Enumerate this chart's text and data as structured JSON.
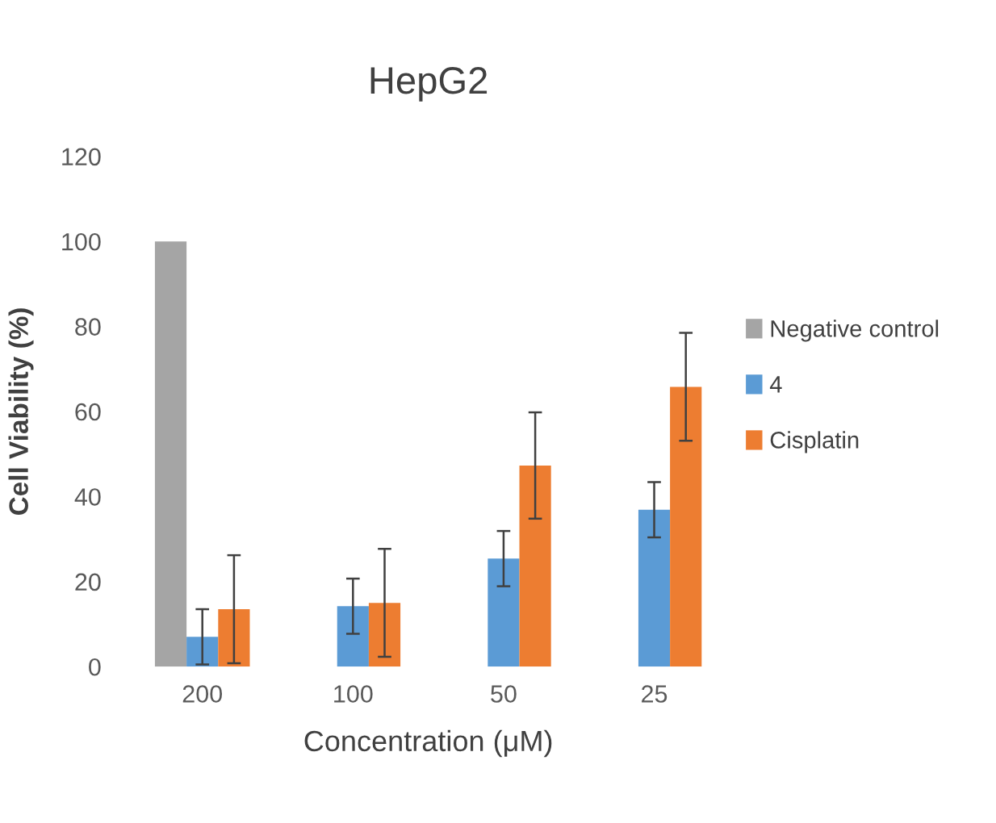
{
  "chart_data": {
    "type": "bar",
    "title": "HepG2",
    "xlabel": "Concentration (μM)",
    "ylabel": "Cell Viability (%)",
    "categories": [
      "200",
      "100",
      "50",
      "25"
    ],
    "series": [
      {
        "name": "Negative control",
        "color": "#a5a5a5",
        "values": [
          100,
          null,
          null,
          null
        ]
      },
      {
        "name": "4",
        "color": "#5b9bd5",
        "values": [
          7,
          14.2,
          25.4,
          36.9
        ],
        "errors": [
          6.5,
          6.5,
          6.5,
          6.5
        ]
      },
      {
        "name": "Cisplatin",
        "color": "#ed7d31",
        "values": [
          13.5,
          15,
          47.3,
          65.8
        ],
        "errors": [
          12.7,
          12.7,
          12.5,
          12.7
        ]
      }
    ],
    "ylim": [
      0,
      120
    ],
    "yticks": [
      0,
      20,
      40,
      60,
      80,
      100,
      120
    ],
    "grid": false,
    "legend": "right"
  }
}
